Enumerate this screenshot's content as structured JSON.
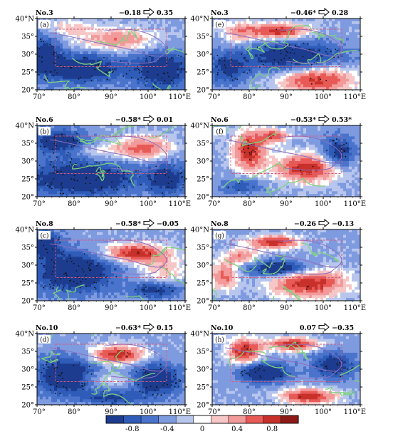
{
  "figure": {
    "x_ticks": [
      "70°",
      "80°",
      "90°",
      "100°",
      "110°E"
    ],
    "y_ticks": [
      "20°",
      "25°",
      "30°",
      "35°",
      "40°N"
    ],
    "colorbar": {
      "ticks": [
        "-0.8",
        "-0.4",
        "0",
        "0.4",
        "0.8"
      ],
      "colors": [
        "#1d3c8f",
        "#2e5cb8",
        "#4a74cc",
        "#7f9be0",
        "#b8c6ee",
        "#ffffff",
        "#f7c6c6",
        "#f29a9a",
        "#e85a56",
        "#c8302b",
        "#8c1a16"
      ]
    },
    "colors": {
      "contour": "#7fd27f",
      "river_boundary": "#8a6fc0",
      "box": "#d45a7a",
      "stipple": "#111111",
      "arrow": "#000000"
    }
  },
  "chart_data": [
    {
      "type": "heatmap",
      "panel_label": "(a)",
      "model": "No.3",
      "corr_from": "−0.18",
      "corr_to": "0.35",
      "x_range": [
        70,
        110
      ],
      "y_range": [
        20,
        40
      ]
    },
    {
      "type": "heatmap",
      "panel_label": "(e)",
      "model": "No.3",
      "corr_from": "−0.46*",
      "corr_to": "0.28",
      "x_range": [
        70,
        110
      ],
      "y_range": [
        20,
        40
      ]
    },
    {
      "type": "heatmap",
      "panel_label": "(b)",
      "model": "No.6",
      "corr_from": "−0.58*",
      "corr_to": "0.01",
      "x_range": [
        70,
        110
      ],
      "y_range": [
        20,
        40
      ]
    },
    {
      "type": "heatmap",
      "panel_label": "(f)",
      "model": "No.6",
      "corr_from": "−0.53*",
      "corr_to": "0.53*",
      "x_range": [
        70,
        110
      ],
      "y_range": [
        20,
        40
      ]
    },
    {
      "type": "heatmap",
      "panel_label": "(c)",
      "model": "No.8",
      "corr_from": "−0.58*",
      "corr_to": "−0.05",
      "x_range": [
        70,
        110
      ],
      "y_range": [
        20,
        40
      ]
    },
    {
      "type": "heatmap",
      "panel_label": "(g)",
      "model": "No.8",
      "corr_from": "−0.26",
      "corr_to": "−0.13",
      "x_range": [
        70,
        110
      ],
      "y_range": [
        20,
        40
      ]
    },
    {
      "type": "heatmap",
      "panel_label": "(d)",
      "model": "No.10",
      "corr_from": "−0.63*",
      "corr_to": "0.15",
      "x_range": [
        70,
        110
      ],
      "y_range": [
        20,
        40
      ]
    },
    {
      "type": "heatmap",
      "panel_label": "(h)",
      "model": "No.10",
      "corr_from": "0.07",
      "corr_to": "−0.35",
      "x_range": [
        70,
        110
      ],
      "y_range": [
        20,
        40
      ]
    }
  ]
}
